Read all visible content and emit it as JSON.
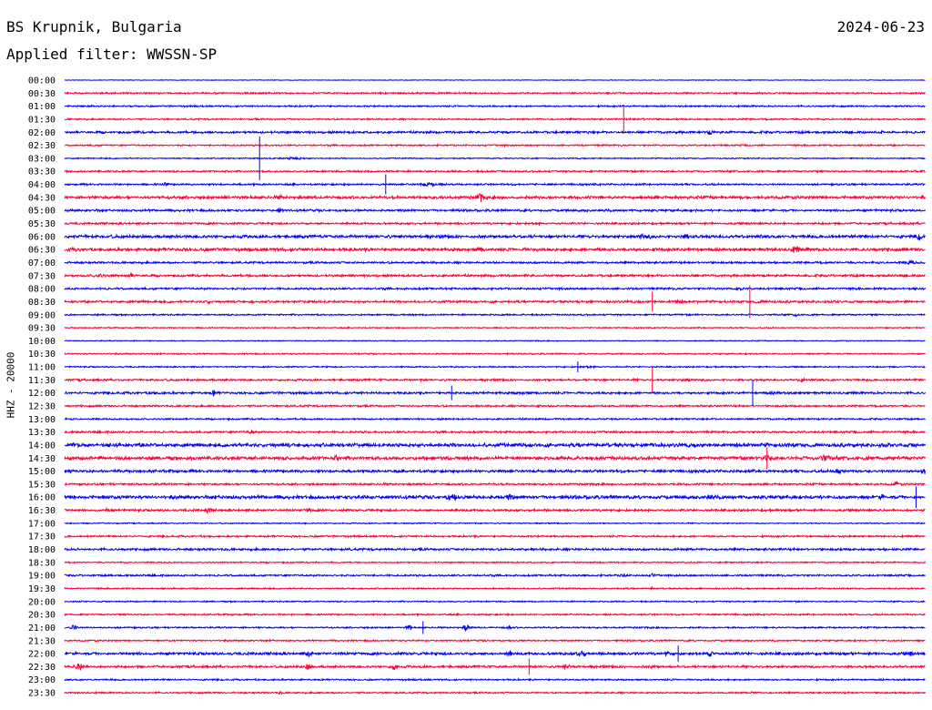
{
  "header": {
    "station": "BS Krupnik, Bulgaria",
    "date": "2024-06-23",
    "filter": "Applied filter: WWSSN-SP",
    "channel": "HHZ - 20000"
  },
  "chart_data": {
    "type": "line",
    "title": "BS Krupnik, Bulgaria",
    "subtitle": "Applied filter: WWSSN-SP",
    "ylabel": "HHZ - 20000",
    "colors": {
      "even": "#0000ff",
      "odd": "#ff0033"
    },
    "tick_labels": [
      "00:00",
      "00:30",
      "01:00",
      "01:30",
      "02:00",
      "02:30",
      "03:00",
      "03:30",
      "04:00",
      "04:30",
      "05:00",
      "05:30",
      "06:00",
      "06:30",
      "07:00",
      "07:30",
      "08:00",
      "08:30",
      "09:00",
      "09:30",
      "10:00",
      "10:30",
      "11:00",
      "11:30",
      "12:00",
      "12:30",
      "13:00",
      "13:30",
      "14:00",
      "14:30",
      "15:00",
      "15:30",
      "16:00",
      "16:30",
      "17:00",
      "17:30",
      "18:00",
      "18:30",
      "19:00",
      "19:30",
      "20:00",
      "20:30",
      "21:00",
      "21:30",
      "22:00",
      "22:30",
      "23:00",
      "23:30"
    ],
    "x_range_minutes": [
      0,
      30
    ],
    "rows": [
      {
        "noise": 0.3,
        "bursts": []
      },
      {
        "noise": 0.7,
        "bursts": []
      },
      {
        "noise": 0.7,
        "bursts": []
      },
      {
        "noise": 0.7,
        "bursts": [
          [
            20.2,
            15,
            0.3
          ]
        ]
      },
      {
        "noise": 1.0,
        "bursts": [
          [
            22.5,
            2,
            2.0
          ],
          [
            28.5,
            1,
            1.5
          ]
        ]
      },
      {
        "noise": 0.7,
        "bursts": []
      },
      {
        "noise": 0.5,
        "bursts": [
          [
            7.9,
            22,
            0.3
          ],
          [
            8.0,
            7,
            1.0
          ]
        ]
      },
      {
        "noise": 0.8,
        "bursts": []
      },
      {
        "noise": 0.8,
        "bursts": [
          [
            3.5,
            3,
            1.2
          ],
          [
            12.7,
            10,
            1.2
          ],
          [
            30.1,
            2,
            3.5
          ]
        ]
      },
      {
        "noise": 1.3,
        "bursts": [
          [
            7.5,
            2,
            1.5
          ],
          [
            14.5,
            3,
            4.0
          ],
          [
            32.5,
            2,
            2.5
          ]
        ]
      },
      {
        "noise": 1.0,
        "bursts": [
          [
            7.5,
            2,
            2.5
          ]
        ]
      },
      {
        "noise": 0.9,
        "bursts": [
          [
            16.5,
            2,
            2.0
          ],
          [
            31.7,
            4,
            0.6
          ]
        ]
      },
      {
        "noise": 1.3,
        "bursts": [
          [
            20.2,
            6,
            1.5
          ],
          [
            21.7,
            6,
            1.5
          ],
          [
            29.8,
            3,
            2.5
          ]
        ]
      },
      {
        "noise": 1.4,
        "bursts": [
          [
            14.5,
            4,
            1.5
          ],
          [
            25.5,
            4,
            2.5
          ]
        ]
      },
      {
        "noise": 0.9,
        "bursts": [
          [
            29.5,
            4,
            2.0
          ]
        ]
      },
      {
        "noise": 1.0,
        "bursts": [
          [
            1.2,
            8,
            0.8
          ],
          [
            2.3,
            4,
            1.5
          ]
        ]
      },
      {
        "noise": 0.9,
        "bursts": [
          [
            23.5,
            3,
            1.0
          ]
        ]
      },
      {
        "noise": 1.0,
        "bursts": [
          [
            5.0,
            3,
            1.5
          ],
          [
            21.4,
            5,
            1.0
          ],
          [
            24.3,
            9,
            0.6
          ]
        ]
      },
      {
        "noise": 0.7,
        "bursts": [
          [
            25.5,
            2,
            2.0
          ]
        ]
      },
      {
        "noise": 0.5,
        "bursts": []
      },
      {
        "noise": 0.4,
        "bursts": []
      },
      {
        "noise": 0.6,
        "bursts": []
      },
      {
        "noise": 0.6,
        "bursts": [
          [
            18.3,
            8,
            0.5
          ]
        ]
      },
      {
        "noise": 0.9,
        "bursts": [
          [
            21.7,
            7,
            0.7
          ],
          [
            25.7,
            3,
            2.0
          ]
        ]
      },
      {
        "noise": 1.0,
        "bursts": [
          [
            3.1,
            7,
            0.8
          ],
          [
            5.2,
            2,
            2.5
          ],
          [
            15.9,
            12,
            0.4
          ],
          [
            24.8,
            12,
            0.5
          ]
        ]
      },
      {
        "noise": 0.8,
        "bursts": [
          [
            16.5,
            2,
            1.5
          ]
        ]
      },
      {
        "noise": 0.7,
        "bursts": []
      },
      {
        "noise": 0.9,
        "bursts": [
          [
            6.5,
            3,
            2.0
          ]
        ]
      },
      {
        "noise": 1.6,
        "bursts": [
          [
            20.5,
            2,
            1.5
          ],
          [
            31.0,
            2,
            2.5
          ]
        ]
      },
      {
        "noise": 1.5,
        "bursts": [
          [
            9.5,
            3,
            2.0
          ],
          [
            24.5,
            4,
            2.5
          ],
          [
            26.5,
            4,
            2.5
          ]
        ]
      },
      {
        "noise": 1.2,
        "bursts": [
          [
            27.0,
            4,
            2.0
          ],
          [
            30.0,
            3,
            2.0
          ]
        ]
      },
      {
        "noise": 0.9,
        "bursts": [
          [
            29.0,
            3,
            1.5
          ],
          [
            30.5,
            2,
            1.5
          ]
        ]
      },
      {
        "noise": 1.5,
        "bursts": [
          [
            13.5,
            5,
            2.5
          ],
          [
            15.5,
            3,
            2.0
          ],
          [
            22.5,
            3,
            1.5
          ],
          [
            28.5,
            2,
            2.0
          ]
        ]
      },
      {
        "noise": 1.0,
        "bursts": [
          [
            1.5,
            2,
            1.5
          ],
          [
            5.0,
            3,
            2.0
          ],
          [
            8.5,
            3,
            1.5
          ]
        ]
      },
      {
        "noise": 0.5,
        "bursts": []
      },
      {
        "noise": 0.8,
        "bursts": [
          [
            30.5,
            2,
            1.0
          ]
        ]
      },
      {
        "noise": 1.0,
        "bursts": []
      },
      {
        "noise": 0.6,
        "bursts": []
      },
      {
        "noise": 0.8,
        "bursts": [
          [
            19.5,
            3,
            1.5
          ],
          [
            20.5,
            2,
            1.5
          ]
        ]
      },
      {
        "noise": 0.6,
        "bursts": [
          [
            20.5,
            2,
            1.0
          ]
        ]
      },
      {
        "noise": 0.6,
        "bursts": []
      },
      {
        "noise": 0.7,
        "bursts": [
          [
            32.0,
            2,
            1.0
          ]
        ]
      },
      {
        "noise": 0.7,
        "bursts": [
          [
            0.3,
            3,
            3.0
          ],
          [
            12.0,
            3,
            2.0
          ],
          [
            14.0,
            3,
            3.5
          ],
          [
            15.5,
            2,
            1.5
          ]
        ]
      },
      {
        "noise": 0.7,
        "bursts": []
      },
      {
        "noise": 1.2,
        "bursts": [
          [
            8.5,
            3,
            2.5
          ],
          [
            15.5,
            2,
            2.0
          ],
          [
            18.0,
            4,
            3.0
          ],
          [
            21.0,
            2,
            3.0
          ],
          [
            22.5,
            3,
            2.5
          ],
          [
            29.5,
            2,
            2.0
          ]
        ]
      },
      {
        "noise": 1.0,
        "bursts": [
          [
            0.5,
            4,
            3.5
          ],
          [
            17.5,
            3,
            2.5
          ],
          [
            8.5,
            3,
            2.5
          ],
          [
            11.5,
            3,
            2.5
          ],
          [
            20.5,
            2,
            1.5
          ]
        ]
      },
      {
        "noise": 0.7,
        "bursts": []
      },
      {
        "noise": 0.7,
        "bursts": [
          [
            7.5,
            2,
            1.0
          ],
          [
            24.0,
            2,
            1.0
          ]
        ]
      }
    ],
    "spikes": [
      {
        "row": 3,
        "minute": 19.5,
        "amp": 16
      },
      {
        "row": 6,
        "minute": 6.8,
        "amp": 24
      },
      {
        "row": 8,
        "minute": 11.2,
        "amp": 11
      },
      {
        "row": 17,
        "minute": 20.5,
        "amp": 11
      },
      {
        "row": 17,
        "minute": 23.9,
        "amp": 18
      },
      {
        "row": 22,
        "minute": 17.9,
        "amp": 6
      },
      {
        "row": 23,
        "minute": 20.5,
        "amp": 14
      },
      {
        "row": 24,
        "minute": 13.5,
        "amp": 8
      },
      {
        "row": 24,
        "minute": 24.0,
        "amp": 14
      },
      {
        "row": 29,
        "minute": 24.5,
        "amp": 12
      },
      {
        "row": 32,
        "minute": 29.7,
        "amp": 12
      },
      {
        "row": 42,
        "minute": 12.5,
        "amp": 7
      },
      {
        "row": 44,
        "minute": 21.4,
        "amp": 9
      },
      {
        "row": 45,
        "minute": 16.2,
        "amp": 9
      }
    ]
  }
}
